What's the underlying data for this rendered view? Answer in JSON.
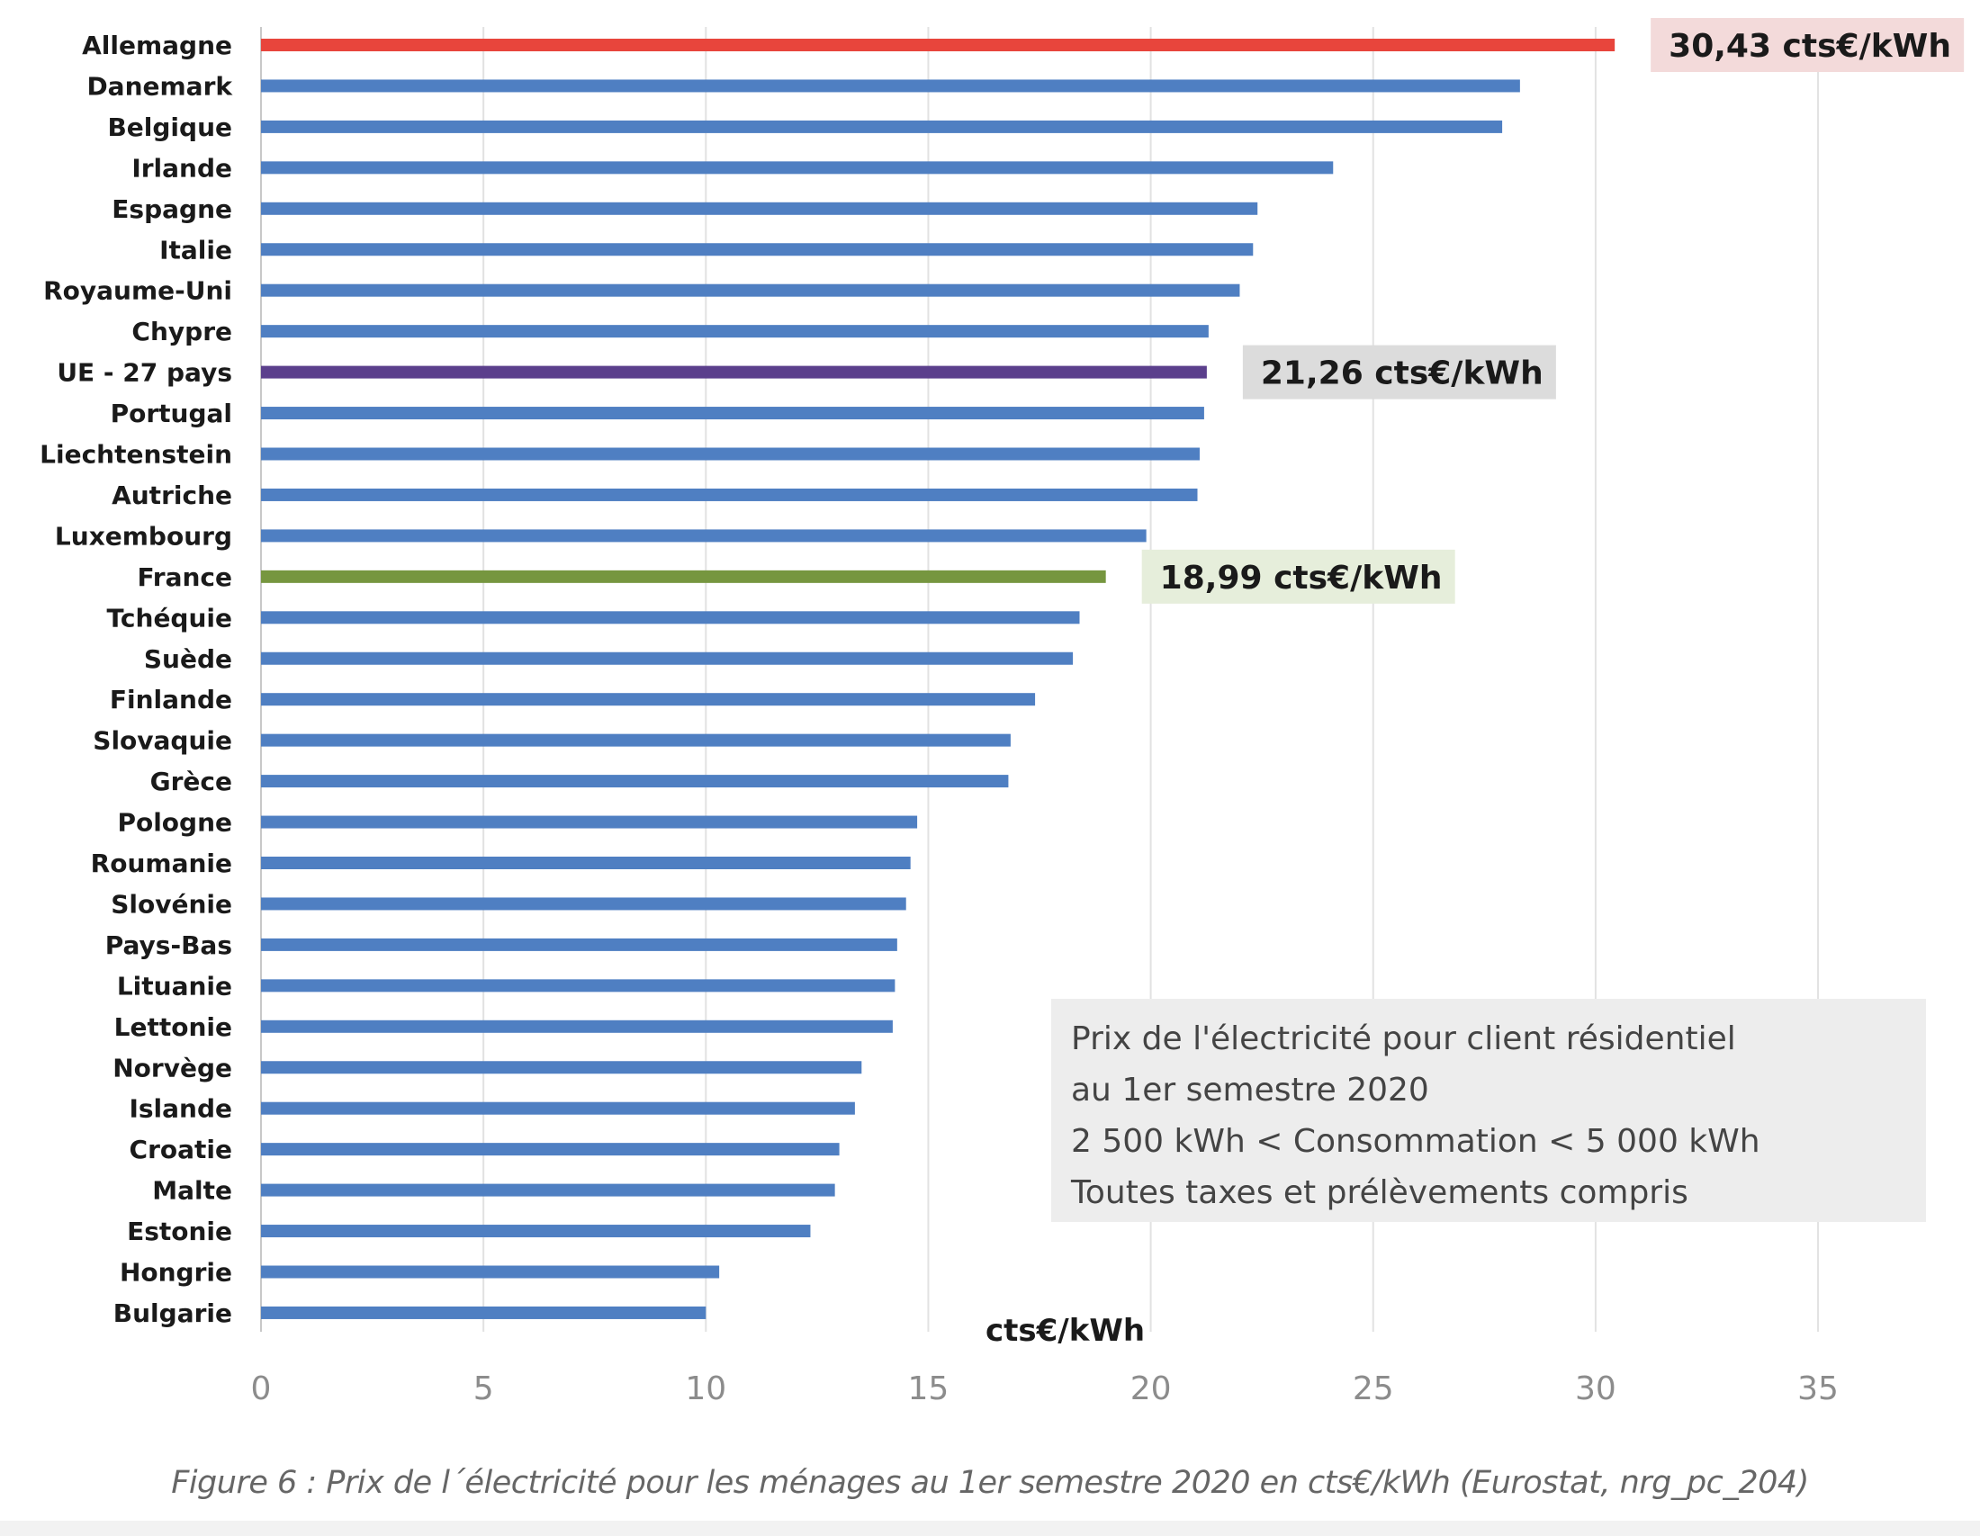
{
  "chart_data": {
    "type": "bar",
    "orientation": "horizontal",
    "categories": [
      "Allemagne",
      "Danemark",
      "Belgique",
      "Irlande",
      "Espagne",
      "Italie",
      "Royaume-Uni",
      "Chypre",
      "UE - 27 pays",
      "Portugal",
      "Liechtenstein",
      "Autriche",
      "Luxembourg",
      "France",
      "Tchéquie",
      "Suède",
      "Finlande",
      "Slovaquie",
      "Grèce",
      "Pologne",
      "Roumanie",
      "Slovénie",
      "Pays-Bas",
      "Lituanie",
      "Lettonie",
      "Norvège",
      "Islande",
      "Croatie",
      "Malte",
      "Estonie",
      "Hongrie",
      "Bulgarie"
    ],
    "values": [
      30.43,
      28.3,
      27.9,
      24.1,
      22.4,
      22.3,
      22.0,
      21.3,
      21.26,
      21.2,
      21.1,
      21.05,
      19.9,
      18.99,
      18.4,
      18.25,
      17.4,
      16.85,
      16.8,
      14.75,
      14.6,
      14.5,
      14.3,
      14.25,
      14.2,
      13.5,
      13.35,
      13.0,
      12.9,
      12.35,
      10.3,
      10.0
    ],
    "bar_colors": [
      "#e8453c",
      "#4f7fc2",
      "#4f7fc2",
      "#4f7fc2",
      "#4f7fc2",
      "#4f7fc2",
      "#4f7fc2",
      "#4f7fc2",
      "#5b3f8c",
      "#4f7fc2",
      "#4f7fc2",
      "#4f7fc2",
      "#4f7fc2",
      "#76963f",
      "#4f7fc2",
      "#4f7fc2",
      "#4f7fc2",
      "#4f7fc2",
      "#4f7fc2",
      "#4f7fc2",
      "#4f7fc2",
      "#4f7fc2",
      "#4f7fc2",
      "#4f7fc2",
      "#4f7fc2",
      "#4f7fc2",
      "#4f7fc2",
      "#4f7fc2",
      "#4f7fc2",
      "#4f7fc2",
      "#4f7fc2",
      "#4f7fc2"
    ],
    "xlim": [
      0,
      35
    ],
    "xticks": [
      0,
      5,
      10,
      15,
      20,
      25,
      30,
      35
    ],
    "xlabel": "cts€/kWh",
    "grid": "vertical",
    "annotations": [
      {
        "category": "Allemagne",
        "text": "30,43 cts€/kWh",
        "background": "#f3dada"
      },
      {
        "category": "UE - 27 pays",
        "text": "21,26 cts€/kWh",
        "background": "#dcdcdc"
      },
      {
        "category": "France",
        "text": "18,99 cts€/kWh",
        "background": "#e6eedb"
      }
    ],
    "note": {
      "lines": [
        "Prix de l'électricité pour client résidentiel",
        "au 1er semestre  2020",
        "2 500 kWh < Consommation  < 5 000 kWh",
        "Toutes  taxes et prélèvements  compris"
      ]
    }
  },
  "caption": "Figure 6 : Prix de l´électricité pour les ménages au 1er semestre 2020 en cts€/kWh (Eurostat, nrg_pc_204)"
}
